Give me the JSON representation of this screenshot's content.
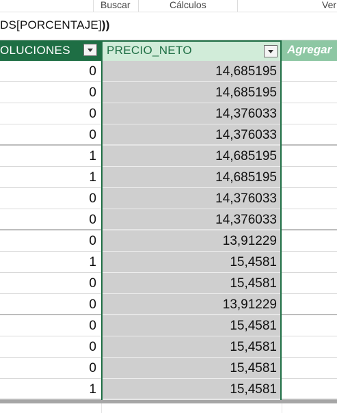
{
  "ribbon": {
    "items": [
      "Buscar",
      "Cálculos",
      "Ver"
    ]
  },
  "formula_bar": {
    "text_prefix": "DS[PORCENTAJE]",
    "text_suffix": "))"
  },
  "columns": {
    "left_header": "OLUCIONES",
    "main_header": "PRECIO_NETO",
    "add_column_header": "Agregar"
  },
  "rows": [
    {
      "devoluciones": "0",
      "precio_neto": "14,685195"
    },
    {
      "devoluciones": "0",
      "precio_neto": "14,685195"
    },
    {
      "devoluciones": "0",
      "precio_neto": "14,376033"
    },
    {
      "devoluciones": "0",
      "precio_neto": "14,376033"
    },
    {
      "devoluciones": "1",
      "precio_neto": "14,685195"
    },
    {
      "devoluciones": "1",
      "precio_neto": "14,685195"
    },
    {
      "devoluciones": "0",
      "precio_neto": "14,376033"
    },
    {
      "devoluciones": "0",
      "precio_neto": "14,376033"
    },
    {
      "devoluciones": "0",
      "precio_neto": "13,91229"
    },
    {
      "devoluciones": "1",
      "precio_neto": "15,4581"
    },
    {
      "devoluciones": "0",
      "precio_neto": "15,4581"
    },
    {
      "devoluciones": "0",
      "precio_neto": "13,91229"
    },
    {
      "devoluciones": "0",
      "precio_neto": "15,4581"
    },
    {
      "devoluciones": "0",
      "precio_neto": "15,4581"
    },
    {
      "devoluciones": "0",
      "precio_neto": "15,4581"
    },
    {
      "devoluciones": "1",
      "precio_neto": "15,4581"
    }
  ],
  "colors": {
    "header_dark_green": "#1e6e44",
    "header_selected": "#d1ecd9",
    "header_add": "#8dc7a3",
    "selection_gray": "#cfcfcf"
  }
}
